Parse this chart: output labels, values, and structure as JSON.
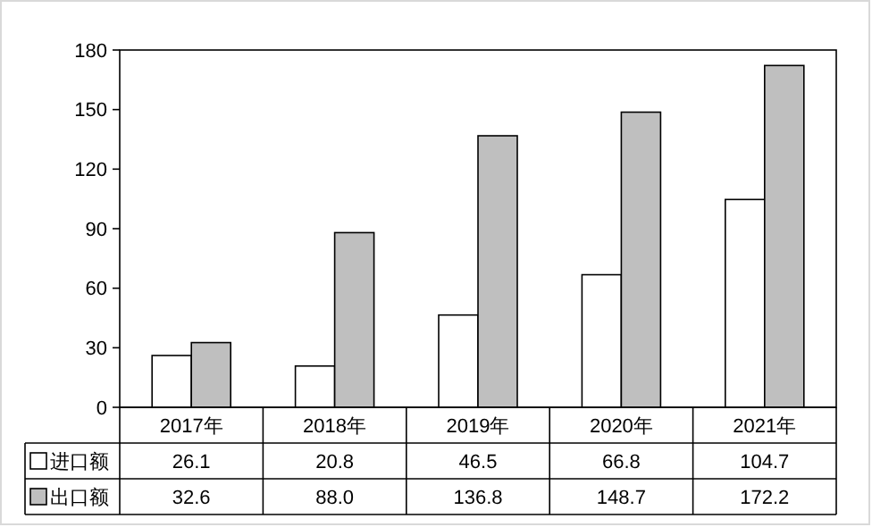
{
  "chart_data": {
    "type": "bar",
    "categories": [
      "2017年",
      "2018年",
      "2019年",
      "2020年",
      "2021年"
    ],
    "series": [
      {
        "name": "进口额",
        "color": "#ffffff",
        "values": [
          26.1,
          20.8,
          46.5,
          66.8,
          104.7
        ],
        "value_labels": [
          "26.1",
          "20.8",
          "46.5",
          "66.8",
          "104.7"
        ]
      },
      {
        "name": "出口额",
        "color": "#bfbfbf",
        "values": [
          32.6,
          88.0,
          136.8,
          148.7,
          172.2
        ],
        "value_labels": [
          "32.6",
          "88.0",
          "136.8",
          "148.7",
          "172.2"
        ]
      }
    ],
    "ylim": [
      0,
      180
    ],
    "yticks": [
      0,
      30,
      60,
      90,
      120,
      150,
      180
    ],
    "grid": false,
    "legend": "bottom"
  }
}
